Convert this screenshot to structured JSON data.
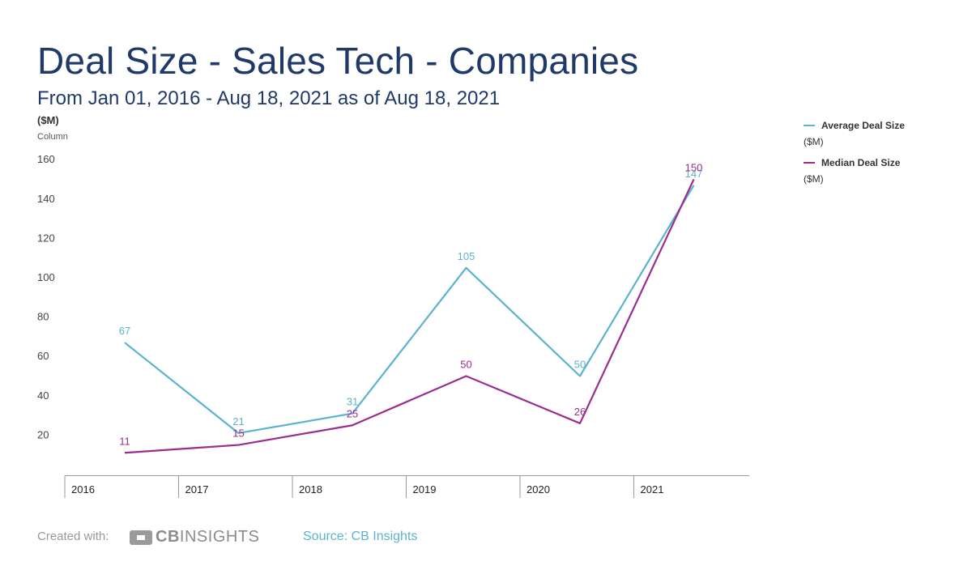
{
  "title": "Deal Size - Sales Tech - Companies",
  "subtitle": "From Jan 01, 2016 - Aug 18, 2021 as of Aug 18, 2021",
  "unit_label": "($M)",
  "axis_type_label": "Column",
  "legend": [
    {
      "name": "Average Deal Size",
      "unit": "($M)",
      "color": "#5bb3cf"
    },
    {
      "name": "Median Deal Size",
      "unit": "($M)",
      "color": "#9b2d8e"
    }
  ],
  "footer": {
    "created_with": "Created with:",
    "logo_bold": "CB",
    "logo_rest": "INSIGHTS",
    "source": "Source: CB Insights"
  },
  "chart_data": {
    "type": "line",
    "title": "Deal Size - Sales Tech - Companies",
    "xlabel": "",
    "ylabel": "($M)",
    "categories": [
      "2016",
      "2017",
      "2018",
      "2019",
      "2020",
      "2021"
    ],
    "yticks": [
      20,
      40,
      60,
      80,
      100,
      120,
      140,
      160
    ],
    "ylim": [
      0,
      160
    ],
    "series": [
      {
        "name": "Average Deal Size",
        "color": "#5bb3cf",
        "values": [
          67,
          21,
          31,
          105,
          50,
          147
        ],
        "labels": [
          "67",
          "21",
          "31",
          "105",
          "50",
          "147"
        ]
      },
      {
        "name": "Median Deal Size",
        "color": "#9b2d8e",
        "values": [
          11,
          15,
          25,
          50,
          26,
          150
        ],
        "labels": [
          "11",
          "15",
          "25",
          "50",
          "26",
          "150"
        ]
      }
    ]
  }
}
